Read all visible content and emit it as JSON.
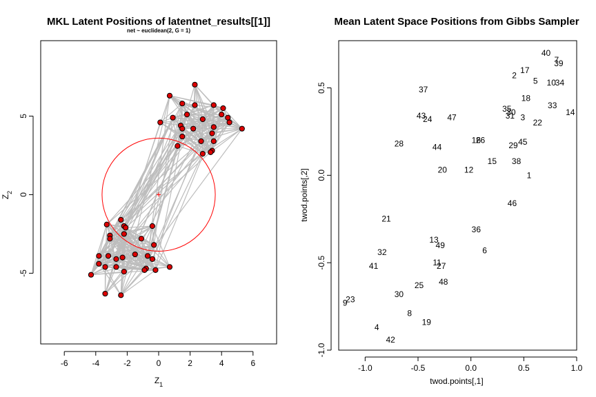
{
  "chart_data": [
    {
      "type": "scatter",
      "title": "MKL Latent Positions of latentnet_results[[1]]",
      "subtitle": "net ~ euclidean(2, G = 1)",
      "xlabel": "Z",
      "xlabel_sub": "1",
      "ylabel": "Z",
      "ylabel_sub": "2",
      "xlim": [
        -7.5,
        7.5
      ],
      "ylim": [
        -9.5,
        9.8
      ],
      "xticks": [
        -6,
        -4,
        -2,
        0,
        2,
        4,
        6
      ],
      "yticks": [
        -5,
        0,
        5
      ],
      "grid": false,
      "edge_color": "#bdbdbd",
      "point_fill": "#dd0000",
      "circle_color": "#ff0000",
      "cluster_circle": {
        "center": [
          0,
          0
        ],
        "radius": 3.6
      },
      "points": [
        {
          "x": 2.3,
          "y": 7.0
        },
        {
          "x": 0.7,
          "y": 6.3
        },
        {
          "x": 1.5,
          "y": 5.8
        },
        {
          "x": 2.3,
          "y": 5.7
        },
        {
          "x": 3.5,
          "y": 5.7
        },
        {
          "x": 4.1,
          "y": 5.5
        },
        {
          "x": 1.8,
          "y": 5.1
        },
        {
          "x": 4.0,
          "y": 5.1
        },
        {
          "x": 4.4,
          "y": 4.9
        },
        {
          "x": 0.9,
          "y": 4.9
        },
        {
          "x": 2.8,
          "y": 4.8
        },
        {
          "x": 4.5,
          "y": 4.6
        },
        {
          "x": 0.1,
          "y": 4.6
        },
        {
          "x": 1.4,
          "y": 4.4
        },
        {
          "x": 3.5,
          "y": 4.3
        },
        {
          "x": 1.5,
          "y": 4.2
        },
        {
          "x": 2.2,
          "y": 4.2
        },
        {
          "x": 5.3,
          "y": 4.2
        },
        {
          "x": 3.4,
          "y": 3.9
        },
        {
          "x": 1.5,
          "y": 3.7
        },
        {
          "x": 2.7,
          "y": 3.4
        },
        {
          "x": 3.5,
          "y": 3.4
        },
        {
          "x": 1.2,
          "y": 3.1
        },
        {
          "x": 3.4,
          "y": 2.8
        },
        {
          "x": 3.3,
          "y": 2.7
        },
        {
          "x": 2.8,
          "y": 2.6
        },
        {
          "x": -2.4,
          "y": -1.6
        },
        {
          "x": -3.3,
          "y": -1.9
        },
        {
          "x": -2.2,
          "y": -2.0
        },
        {
          "x": -0.4,
          "y": -2.0
        },
        {
          "x": -2.1,
          "y": -2.1
        },
        {
          "x": -3.1,
          "y": -2.6
        },
        {
          "x": -2.2,
          "y": -2.5
        },
        {
          "x": -3.1,
          "y": -2.8
        },
        {
          "x": -1.1,
          "y": -2.8
        },
        {
          "x": -0.3,
          "y": -3.2
        },
        {
          "x": -3.8,
          "y": -3.9
        },
        {
          "x": -3.2,
          "y": -3.9
        },
        {
          "x": -1.5,
          "y": -3.8
        },
        {
          "x": -0.7,
          "y": -3.9
        },
        {
          "x": -2.3,
          "y": -4.0
        },
        {
          "x": -2.7,
          "y": -4.1
        },
        {
          "x": -0.4,
          "y": -4.1
        },
        {
          "x": -3.8,
          "y": -4.4
        },
        {
          "x": -2.7,
          "y": -4.6
        },
        {
          "x": -3.4,
          "y": -4.6
        },
        {
          "x": -0.8,
          "y": -4.7
        },
        {
          "x": 0.7,
          "y": -4.6
        },
        {
          "x": -0.9,
          "y": -4.8
        },
        {
          "x": -2.2,
          "y": -4.9
        },
        {
          "x": -0.2,
          "y": -4.8
        },
        {
          "x": -4.3,
          "y": -5.1
        },
        {
          "x": -3.4,
          "y": -6.3
        },
        {
          "x": -2.4,
          "y": -6.4
        }
      ]
    },
    {
      "type": "scatter",
      "title": "Mean Latent Space Positions from Gibbs Sampler",
      "xlabel": "twod.points[,1]",
      "ylabel": "twod.points[,2]",
      "xlim": [
        -1.25,
        1.0
      ],
      "ylim": [
        -1.0,
        0.77
      ],
      "xticks": [
        -1.0,
        -0.5,
        0.0,
        0.5,
        1.0
      ],
      "xtick_labels": [
        "-1.0",
        "-0.5",
        "0.0",
        "0.5",
        "1.0"
      ],
      "yticks": [
        -1.0,
        -0.5,
        0.0,
        0.5
      ],
      "ytick_labels": [
        "-1.0",
        "-0.5",
        "0.0",
        "0.5"
      ],
      "grid": false,
      "points": [
        {
          "label": "40",
          "x": 0.71,
          "y": 0.7
        },
        {
          "label": "7",
          "x": 0.81,
          "y": 0.66
        },
        {
          "label": "39",
          "x": 0.83,
          "y": 0.64
        },
        {
          "label": "17",
          "x": 0.51,
          "y": 0.6
        },
        {
          "label": "2",
          "x": 0.41,
          "y": 0.57
        },
        {
          "label": "5",
          "x": 0.61,
          "y": 0.54
        },
        {
          "label": "10",
          "x": 0.76,
          "y": 0.53
        },
        {
          "label": "34",
          "x": 0.84,
          "y": 0.53
        },
        {
          "label": "37",
          "x": -0.45,
          "y": 0.49
        },
        {
          "label": "18",
          "x": 0.52,
          "y": 0.44
        },
        {
          "label": "33",
          "x": 0.77,
          "y": 0.4
        },
        {
          "label": "35",
          "x": 0.34,
          "y": 0.38
        },
        {
          "label": "30",
          "x": 0.38,
          "y": 0.36
        },
        {
          "label": "14",
          "x": 0.94,
          "y": 0.36
        },
        {
          "label": "43",
          "x": -0.47,
          "y": 0.34
        },
        {
          "label": "24",
          "x": -0.41,
          "y": 0.32
        },
        {
          "label": "47",
          "x": -0.18,
          "y": 0.33
        },
        {
          "label": "31",
          "x": 0.37,
          "y": 0.34
        },
        {
          "label": "3",
          "x": 0.49,
          "y": 0.33
        },
        {
          "label": "22",
          "x": 0.63,
          "y": 0.3
        },
        {
          "label": "16",
          "x": 0.05,
          "y": 0.2
        },
        {
          "label": "26",
          "x": 0.09,
          "y": 0.2
        },
        {
          "label": "45",
          "x": 0.49,
          "y": 0.19
        },
        {
          "label": "28",
          "x": -0.68,
          "y": 0.18
        },
        {
          "label": "29",
          "x": 0.4,
          "y": 0.17
        },
        {
          "label": "44",
          "x": -0.32,
          "y": 0.16
        },
        {
          "label": "15",
          "x": 0.2,
          "y": 0.08
        },
        {
          "label": "38",
          "x": 0.43,
          "y": 0.08
        },
        {
          "label": "20",
          "x": -0.27,
          "y": 0.03
        },
        {
          "label": "12",
          "x": -0.02,
          "y": 0.03
        },
        {
          "label": "1",
          "x": 0.55,
          "y": 0.0
        },
        {
          "label": "46",
          "x": 0.39,
          "y": -0.16
        },
        {
          "label": "21",
          "x": -0.8,
          "y": -0.25
        },
        {
          "label": "36",
          "x": 0.05,
          "y": -0.31
        },
        {
          "label": "13",
          "x": -0.35,
          "y": -0.37
        },
        {
          "label": "49",
          "x": -0.29,
          "y": -0.4
        },
        {
          "label": "6",
          "x": 0.13,
          "y": -0.43
        },
        {
          "label": "32",
          "x": -0.84,
          "y": -0.44
        },
        {
          "label": "11",
          "x": -0.32,
          "y": -0.5
        },
        {
          "label": "27",
          "x": -0.28,
          "y": -0.52
        },
        {
          "label": "41",
          "x": -0.92,
          "y": -0.52
        },
        {
          "label": "48",
          "x": -0.26,
          "y": -0.61
        },
        {
          "label": "25",
          "x": -0.49,
          "y": -0.63
        },
        {
          "label": "30",
          "x": -0.68,
          "y": -0.68
        },
        {
          "label": "9",
          "x": -1.19,
          "y": -0.73
        },
        {
          "label": "23",
          "x": -1.14,
          "y": -0.71
        },
        {
          "label": "8",
          "x": -0.58,
          "y": -0.79
        },
        {
          "label": "19",
          "x": -0.42,
          "y": -0.84
        },
        {
          "label": "4",
          "x": -0.89,
          "y": -0.87
        },
        {
          "label": "42",
          "x": -0.76,
          "y": -0.94
        }
      ]
    }
  ]
}
